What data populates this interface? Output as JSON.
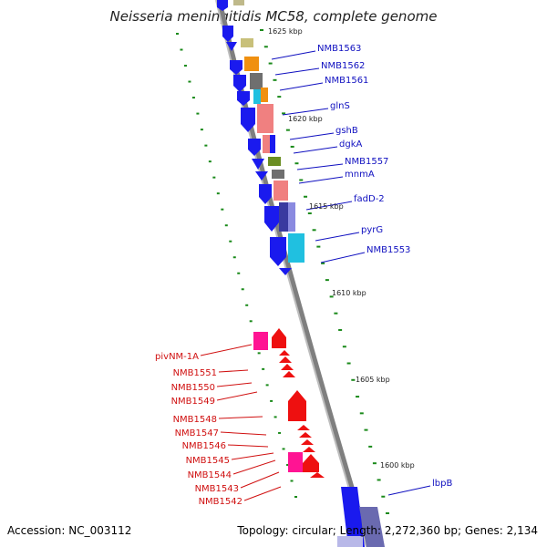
{
  "title": "Neisseria meningitidis MC58, complete genome",
  "footer": {
    "accession": "Accession: NC_003112",
    "summary": "Topology: circular; Length: 2,272,360 bp; Genes: 2,134"
  },
  "colors": {
    "forward_label": "#1010c0",
    "reverse_label": "#d01010",
    "tick": "#1a8a1a",
    "backbone": "#8a8a8a"
  },
  "ticks": [
    "1625 kbp",
    "1620 kbp",
    "1615 kbp",
    "1610 kbp",
    "1605 kbp",
    "1600 kbp"
  ],
  "forward_genes": [
    "NMB1563",
    "NMB1562",
    "NMB1561",
    "glnS",
    "gshB",
    "dgkA",
    "NMB1557",
    "mnmA",
    "fadD-2",
    "pyrG",
    "NMB1553",
    "lbpB"
  ],
  "reverse_genes": [
    "pivNM-1A",
    "NMB1551",
    "NMB1550",
    "NMB1549",
    "NMB1548",
    "NMB1547",
    "NMB1546",
    "NMB1545",
    "NMB1544",
    "NMB1543",
    "NMB1542"
  ]
}
